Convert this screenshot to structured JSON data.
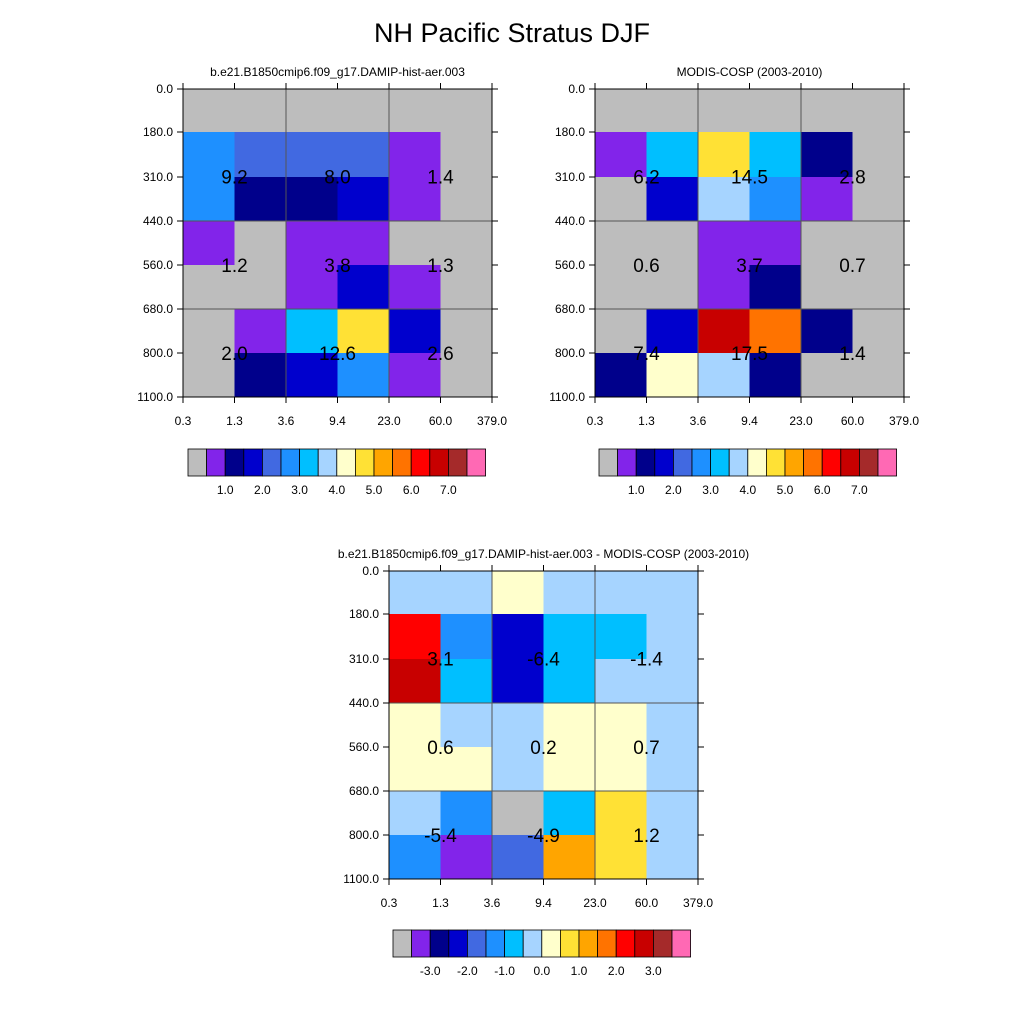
{
  "figure": {
    "title": "NH Pacific Stratus DJF"
  },
  "colors": {
    "missing": "#bdbdbd",
    "palette": [
      "#bdbdbd",
      "#8224ea",
      "#00008b",
      "#0000cd",
      "#4169e1",
      "#1e90ff",
      "#00bfff",
      "#a6d4ff",
      "#ffffcc",
      "#ffe135",
      "#ffa500",
      "#ff7300",
      "#ff0000",
      "#c80000",
      "#a52a2a",
      "#ff69b4"
    ]
  },
  "chart_data": [
    {
      "type": "heatmap",
      "title": "b.e21.B1850cmip6.f09_g17.DAMIP-hist-aer.003",
      "x_tick_labels": [
        "0.3",
        "1.3",
        "3.6",
        "9.4",
        "23.0",
        "60.0",
        "379.0"
      ],
      "y_tick_labels": [
        "0.0",
        "180.0",
        "310.0",
        "440.0",
        "560.0",
        "680.0",
        "800.0",
        "1100.0"
      ],
      "cell_color_index": [
        [
          0,
          0,
          0,
          0,
          0,
          0
        ],
        [
          5,
          4,
          4,
          4,
          1,
          0
        ],
        [
          5,
          2,
          2,
          3,
          1,
          0
        ],
        [
          1,
          0,
          1,
          1,
          0,
          0
        ],
        [
          0,
          0,
          1,
          3,
          1,
          0
        ],
        [
          0,
          1,
          6,
          9,
          3,
          0
        ],
        [
          0,
          2,
          3,
          5,
          1,
          0
        ]
      ],
      "box_labels": [
        [
          "9.2",
          "8.0",
          "1.4"
        ],
        [
          "1.2",
          "3.8",
          "1.3"
        ],
        [
          "2.0",
          "12.6",
          "2.6"
        ]
      ],
      "colorbar_labels": [
        "1.0",
        "2.0",
        "3.0",
        "4.0",
        "5.0",
        "6.0",
        "7.0"
      ]
    },
    {
      "type": "heatmap",
      "title": "MODIS-COSP (2003-2010)",
      "x_tick_labels": [
        "0.3",
        "1.3",
        "3.6",
        "9.4",
        "23.0",
        "60.0",
        "379.0"
      ],
      "y_tick_labels": [
        "0.0",
        "180.0",
        "310.0",
        "440.0",
        "560.0",
        "680.0",
        "800.0",
        "1100.0"
      ],
      "cell_color_index": [
        [
          0,
          0,
          0,
          0,
          0,
          0
        ],
        [
          1,
          6,
          9,
          6,
          2,
          0
        ],
        [
          0,
          3,
          7,
          5,
          1,
          0
        ],
        [
          0,
          0,
          1,
          1,
          0,
          0
        ],
        [
          0,
          0,
          1,
          2,
          0,
          0
        ],
        [
          0,
          3,
          13,
          11,
          2,
          0
        ],
        [
          2,
          8,
          7,
          2,
          0,
          0
        ]
      ],
      "box_labels": [
        [
          "6.2",
          "14.5",
          "2.8"
        ],
        [
          "0.6",
          "3.7",
          "0.7"
        ],
        [
          "7.4",
          "17.5",
          "1.4"
        ]
      ],
      "colorbar_labels": [
        "1.0",
        "2.0",
        "3.0",
        "4.0",
        "5.0",
        "6.0",
        "7.0"
      ]
    },
    {
      "type": "heatmap",
      "title": "b.e21.B1850cmip6.f09_g17.DAMIP-hist-aer.003 - MODIS-COSP (2003-2010)",
      "x_tick_labels": [
        "0.3",
        "1.3",
        "3.6",
        "9.4",
        "23.0",
        "60.0",
        "379.0"
      ],
      "y_tick_labels": [
        "0.0",
        "180.0",
        "310.0",
        "440.0",
        "560.0",
        "680.0",
        "800.0",
        "1100.0"
      ],
      "cell_color_index": [
        [
          7,
          7,
          8,
          7,
          7,
          7
        ],
        [
          12,
          5,
          3,
          6,
          6,
          7
        ],
        [
          13,
          6,
          3,
          6,
          7,
          7
        ],
        [
          8,
          7,
          7,
          8,
          8,
          7
        ],
        [
          8,
          8,
          7,
          8,
          8,
          7
        ],
        [
          7,
          5,
          0,
          6,
          9,
          7
        ],
        [
          5,
          1,
          4,
          10,
          9,
          7
        ]
      ],
      "box_labels": [
        [
          "3.1",
          "-6.4",
          "-1.4"
        ],
        [
          "0.6",
          "0.2",
          "0.7"
        ],
        [
          "-5.4",
          "-4.9",
          "1.2"
        ]
      ],
      "colorbar_labels": [
        "-3.0",
        "-2.0",
        "-1.0",
        "0.0",
        "1.0",
        "2.0",
        "3.0"
      ]
    }
  ]
}
